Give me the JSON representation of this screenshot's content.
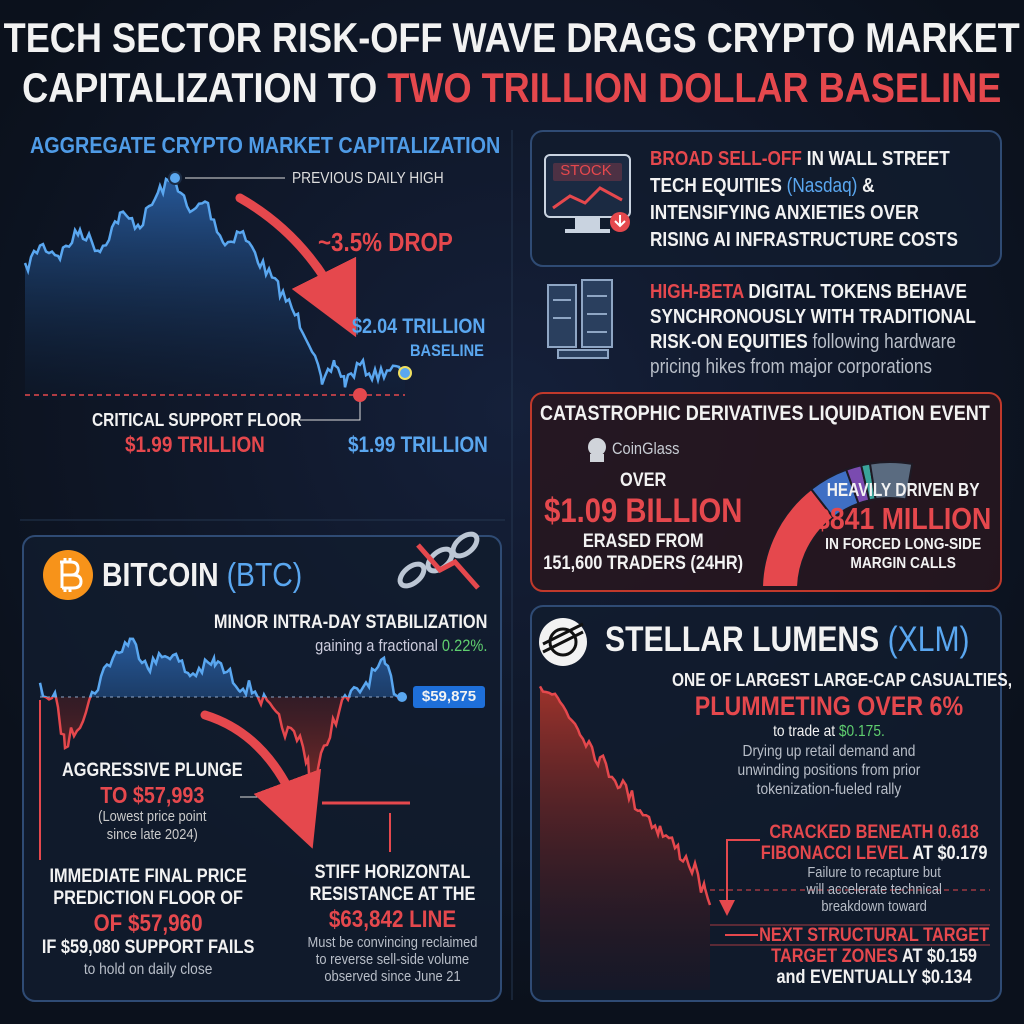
{
  "title": {
    "line1": "TECH SECTOR RISK-OFF WAVE DRAGS CRYPTO MARKET",
    "line2": "CAPITALIZATION TO",
    "line2_highlight": "TWO TRILLION DOLLAR BASELINE"
  },
  "market_cap": {
    "heading": "AGGREGATE CRYPTO MARKET CAPITALIZATION",
    "previous_high": "PREVIOUS DAILY HIGH",
    "drop": "~3.5% DROP",
    "baseline_value": "$2.04 TRILLION",
    "baseline_label": "BASELINE",
    "support_label": "CRITICAL SUPPORT FLOOR",
    "support_value": "$1.99 TRILLION",
    "current_value": "$1.99 TRILLION"
  },
  "sell_off": {
    "icon_label": "STOCK",
    "lines": [
      [
        "BROAD SELL-OFF",
        " IN WALL STREET"
      ],
      [
        "TECH EQUITIES ",
        "(Nasdaq)",
        " &"
      ],
      [
        "INTENSIFYING ANXIETIES OVER"
      ],
      [
        "RISING AI INFRASTRUCTURE COSTS"
      ]
    ]
  },
  "high_beta": {
    "lines": [
      [
        "HIGH-BETA",
        " DIGITAL TOKENS BEHAVE"
      ],
      [
        "SYNCHRONOUSLY WITH TRADITIONAL"
      ],
      [
        "RISK-ON EQUITIES",
        " following hardware"
      ],
      [
        "pricing hikes from major corporations"
      ]
    ]
  },
  "liquidation": {
    "title": "CATASTROPHIC DERIVATIVES LIQUIDATION EVENT",
    "source": "CoinGlass",
    "left": [
      "OVER",
      "$1.09 BILLION",
      "ERASED FROM",
      "151,600 TRADERS (24HR)"
    ],
    "right": [
      "HEAVILY DRIVEN BY",
      "$841 MILLION",
      "IN FORCED LONG-SIDE",
      "MARGIN CALLS"
    ]
  },
  "bitcoin": {
    "name": "BITCOIN",
    "ticker": "(BTC)",
    "stabilization": "MINOR INTRA-DAY STABILIZATION",
    "gain": [
      "gaining a fractional ",
      "0.22%."
    ],
    "price": "$59,875",
    "plunge": [
      "AGGRESSIVE PLUNGE",
      "TO $57,993",
      "(Lowest price point",
      "since late 2024)"
    ],
    "floor": [
      "IMMEDIATE FINAL PRICE",
      "PREDICTION FLOOR OF",
      "OF $57,960",
      "IF $59,080 SUPPORT FAILS",
      "to hold on daily close"
    ],
    "resistance": [
      "STIFF HORIZONTAL",
      "RESISTANCE AT THE",
      "$63,842 LINE",
      "Must be convincing reclaimed",
      "to reverse sell-side volume",
      "observed since June 21"
    ]
  },
  "stellar": {
    "name": "STELLAR LUMENS",
    "ticker": "(XLM)",
    "casualty": [
      "ONE OF LARGEST LARGE-CAP CASUALTIES,",
      "PLUMMETING OVER 6%"
    ],
    "trade": [
      "to trade at ",
      "$0.175."
    ],
    "demand": [
      "Drying up retail demand and",
      "unwinding positions from prior",
      "tokenization-fueled rally"
    ],
    "fibonacci": [
      [
        "CRACKED BENEATH 0.618"
      ],
      [
        "FIBONACCI LEVEL",
        " AT $0.179"
      ],
      [
        "Failure to recapture but"
      ],
      [
        "will accelerate technical"
      ],
      [
        "breakdown toward"
      ]
    ],
    "targets": [
      [
        "NEXT STRUCTURAL TARGET"
      ],
      [
        "TARGET ZONES",
        " AT $0.159"
      ],
      [
        "and EVENTUALLY $0.134"
      ]
    ]
  }
}
